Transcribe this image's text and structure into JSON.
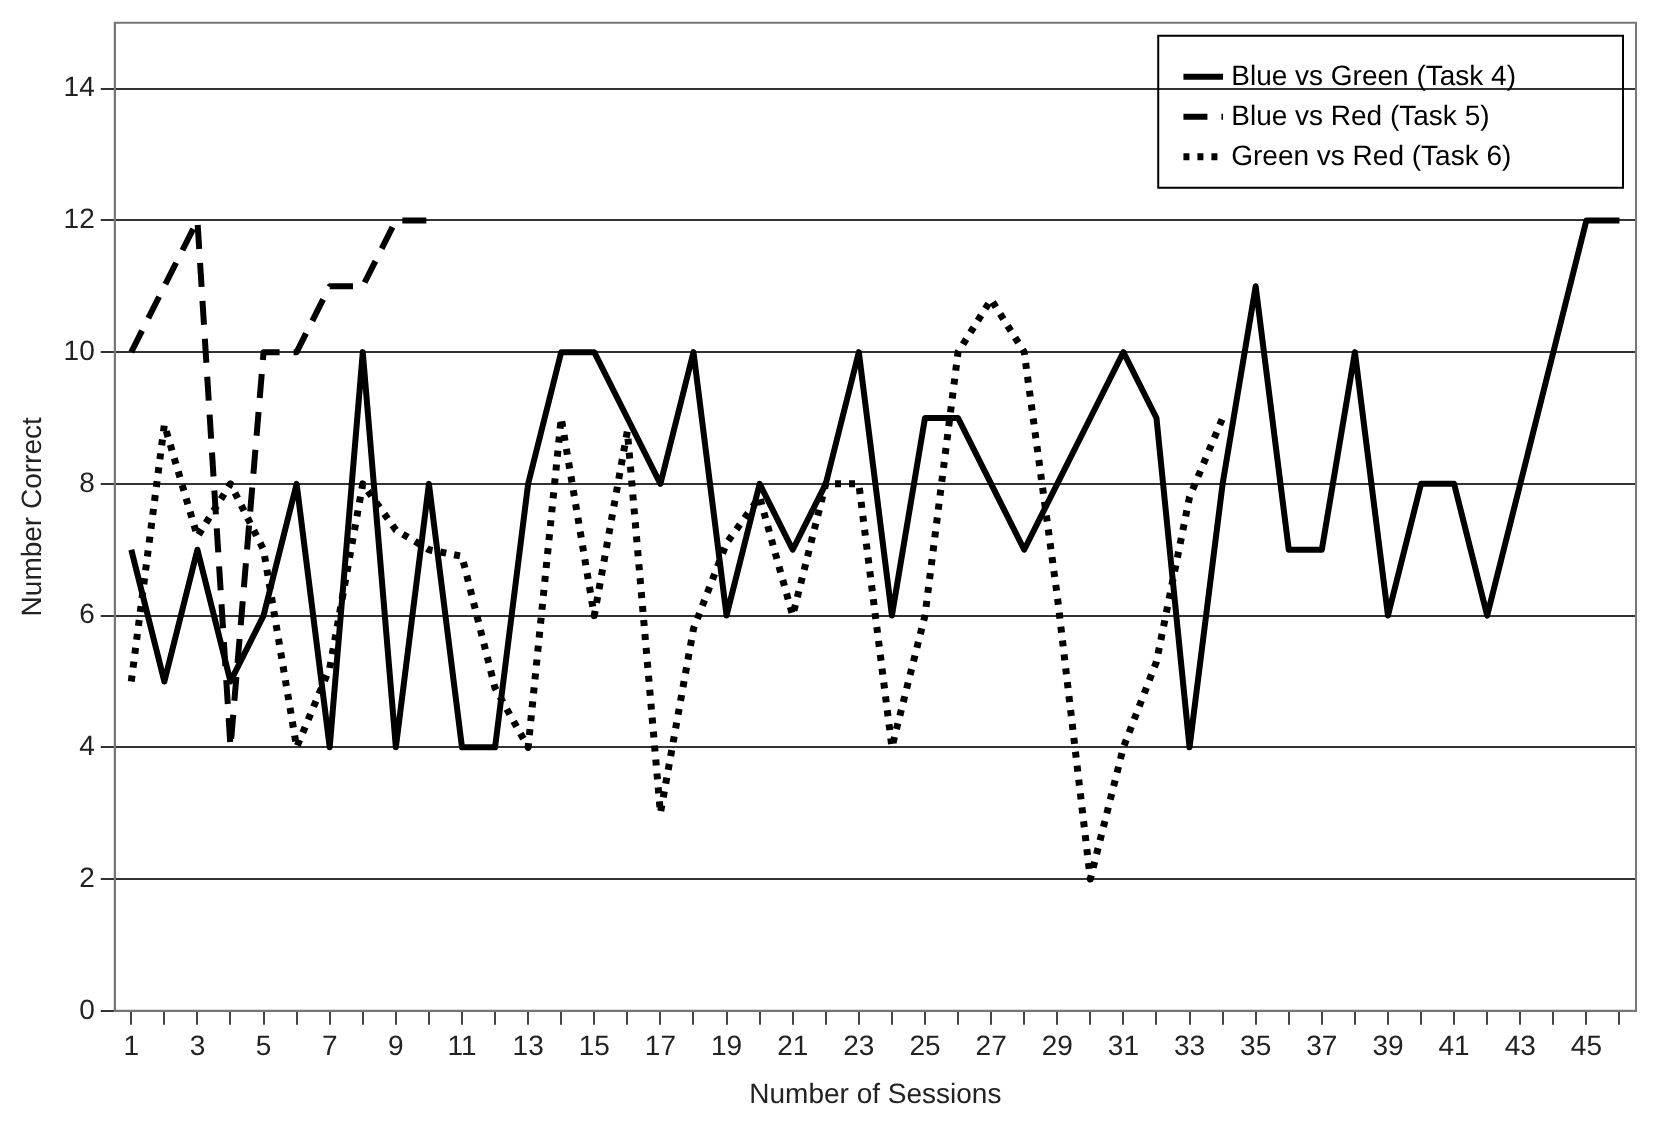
{
  "chart_data": {
    "type": "line",
    "xlabel": "Number of Sessions",
    "ylabel": "Number Correct",
    "x": [
      1,
      2,
      3,
      4,
      5,
      6,
      7,
      8,
      9,
      10,
      11,
      12,
      13,
      14,
      15,
      16,
      17,
      18,
      19,
      20,
      21,
      22,
      23,
      24,
      25,
      26,
      27,
      28,
      29,
      30,
      31,
      32,
      33,
      34,
      35,
      36,
      37,
      38,
      39,
      40,
      41,
      42,
      43,
      44,
      45,
      46
    ],
    "xlim": [
      0.5,
      46.5
    ],
    "xticks": [
      1,
      {
        "value": 2,
        "label": null
      },
      3,
      {
        "value": 4,
        "label": null
      },
      5,
      {
        "value": 6,
        "label": null
      },
      7,
      {
        "value": 8,
        "label": null
      },
      9,
      {
        "value": 10,
        "label": null
      },
      11,
      {
        "value": 12,
        "label": null
      },
      13,
      {
        "value": 14,
        "label": null
      },
      15,
      {
        "value": 16,
        "label": null
      },
      17,
      {
        "value": 18,
        "label": null
      },
      19,
      {
        "value": 20,
        "label": null
      },
      21,
      {
        "value": 22,
        "label": null
      },
      23,
      {
        "value": 24,
        "label": null
      },
      25,
      {
        "value": 26,
        "label": null
      },
      27,
      {
        "value": 28,
        "label": null
      },
      29,
      {
        "value": 30,
        "label": null
      },
      31,
      {
        "value": 32,
        "label": null
      },
      33,
      {
        "value": 34,
        "label": null
      },
      35,
      {
        "value": 36,
        "label": null
      },
      37,
      {
        "value": 38,
        "label": null
      },
      39,
      {
        "value": 40,
        "label": null
      },
      41,
      {
        "value": 42,
        "label": null
      },
      43,
      {
        "value": 44,
        "label": null
      },
      45,
      {
        "value": 46,
        "label": null
      }
    ],
    "ylim": [
      0,
      15
    ],
    "yticks": [
      0,
      2,
      4,
      6,
      8,
      10,
      12,
      14
    ],
    "grid": "y",
    "legend": "top right",
    "marker": "none",
    "series": [
      {
        "name": "Blue vs Green (Task 4)",
        "color": "#000000",
        "line_style": "solid",
        "values": [
          7,
          5,
          7,
          5,
          6,
          8,
          4,
          10,
          4,
          8,
          4,
          4,
          8,
          10,
          10,
          9,
          8,
          10,
          6,
          8,
          7,
          8,
          10,
          6,
          9,
          9,
          8,
          7,
          8,
          9,
          10,
          9,
          4,
          8,
          11,
          7,
          7,
          10,
          6,
          8,
          8,
          6,
          8,
          10,
          12,
          12
        ]
      },
      {
        "name": "Blue vs Red (Task 5)",
        "color": "#000000",
        "line_style": "dashed",
        "values": [
          10,
          11,
          12,
          4,
          10,
          10,
          11,
          11,
          12,
          12,
          null,
          null,
          null,
          null,
          null,
          null,
          null,
          null,
          null,
          null,
          null,
          null,
          null,
          null,
          null,
          null,
          null,
          null,
          null,
          null,
          null,
          null,
          null,
          null,
          null,
          null,
          null,
          null,
          null,
          null,
          null,
          null,
          null,
          null,
          null,
          null
        ]
      },
      {
        "name": "Green vs Red (Task 6)",
        "color": "#000000",
        "line_style": "dotted",
        "values": [
          5,
          8.9,
          7.2,
          8,
          7,
          4,
          5.2,
          8,
          7.3,
          7,
          6.9,
          4.9,
          4,
          9,
          6,
          8.8,
          3,
          5.8,
          7.1,
          7.8,
          6,
          8,
          8,
          4,
          6,
          10,
          10.8,
          10,
          6.3,
          2,
          4,
          5.3,
          7.8,
          9,
          null,
          null,
          null,
          null,
          null,
          null,
          null,
          null,
          null,
          null,
          null,
          null
        ]
      }
    ]
  }
}
